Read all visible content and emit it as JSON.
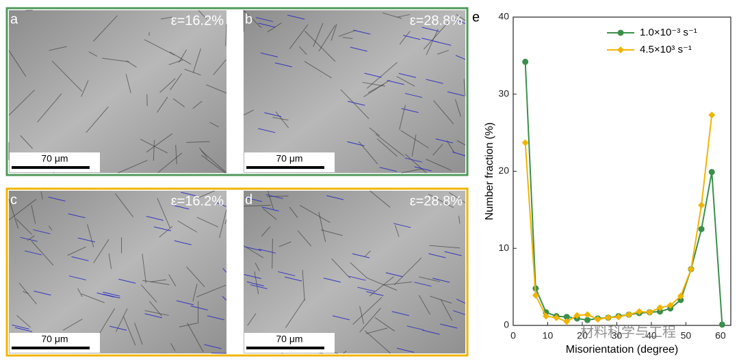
{
  "panels": [
    {
      "label": "a",
      "strain": "ε=16.2%",
      "scale_bar": "70 μm"
    },
    {
      "label": "b",
      "strain": "ε=28.8%",
      "scale_bar": "70 μm"
    },
    {
      "label": "c",
      "strain": "ε=16.2%",
      "scale_bar": "70 μm"
    },
    {
      "label": "d",
      "strain": "ε=28.8%",
      "scale_bar": "70 μm"
    }
  ],
  "watermark": "材料科学与工程",
  "chart_data": {
    "type": "line",
    "panel_label": "e",
    "x_label": "Misorientation (degree)",
    "y_label": "Number fraction (%)",
    "x": [
      3.5,
      6.5,
      9.5,
      12.5,
      15.5,
      18.5,
      21.5,
      24.5,
      27.5,
      30.5,
      33.5,
      36.5,
      39.5,
      42.5,
      45.5,
      48.5,
      51.5,
      54.5,
      57.5,
      60.5
    ],
    "series": [
      {
        "name": "1.0×10⁻³ s⁻¹",
        "color": "#3a8f4a",
        "marker": "circle",
        "values": [
          34.2,
          4.8,
          1.7,
          1.2,
          1.1,
          0.9,
          0.7,
          0.9,
          1.0,
          1.2,
          1.4,
          1.6,
          1.7,
          1.8,
          2.2,
          3.3,
          7.3,
          12.5,
          19.9,
          0.1
        ]
      },
      {
        "name": "4.5×10³ s⁻¹",
        "color": "#f0b400",
        "marker": "diamond",
        "values": [
          23.7,
          3.9,
          1.2,
          1.0,
          0.5,
          1.3,
          1.4,
          0.8,
          1.0,
          1.1,
          1.4,
          1.8,
          1.7,
          2.3,
          2.6,
          3.8,
          7.3,
          15.6,
          27.3,
          null
        ]
      }
    ],
    "xlim": [
      0,
      63
    ],
    "ylim": [
      0,
      40
    ],
    "xticks": [
      0,
      10,
      20,
      30,
      40,
      50,
      60
    ],
    "yticks": [
      0,
      10,
      20,
      30,
      40
    ],
    "legend": "upper-center"
  }
}
